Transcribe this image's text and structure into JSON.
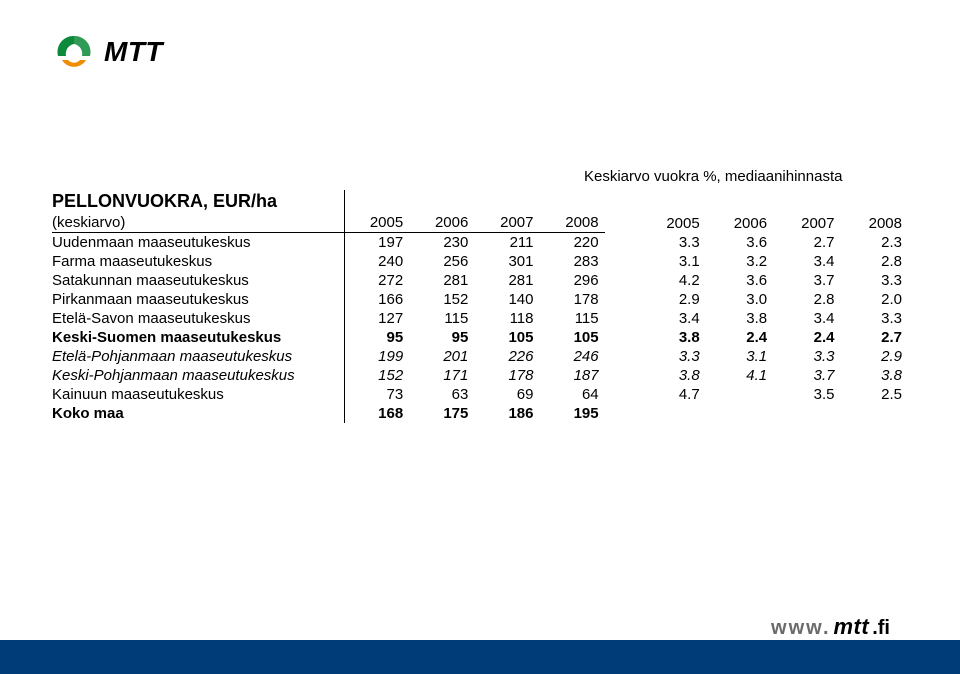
{
  "logo": {
    "text": "MTT",
    "colors": {
      "green": "#0a8a3a",
      "orange": "#f08c00",
      "text": "#000000"
    }
  },
  "table": {
    "super_header": "Keskiarvo vuokra %, mediaanihinnasta",
    "title": "PELLONVUOKRA, EUR/ha",
    "subtitle_label": "(keskiarvo)",
    "eur_years": [
      "2005",
      "2006",
      "2007",
      "2008"
    ],
    "pct_years": [
      "2005",
      "2006",
      "2007",
      "2008"
    ],
    "rows": [
      {
        "label": "Uudenmaan maaseutukeskus",
        "eur": [
          "197",
          "230",
          "211",
          "220"
        ],
        "pct": [
          "3.3",
          "3.6",
          "2.7",
          "2.3"
        ]
      },
      {
        "label": "Farma maaseutukeskus",
        "eur": [
          "240",
          "256",
          "301",
          "283"
        ],
        "pct": [
          "3.1",
          "3.2",
          "3.4",
          "2.8"
        ]
      },
      {
        "label": "Satakunnan maaseutukeskus",
        "eur": [
          "272",
          "281",
          "281",
          "296"
        ],
        "pct": [
          "4.2",
          "3.6",
          "3.7",
          "3.3"
        ]
      },
      {
        "label": "Pirkanmaan maaseutukeskus",
        "eur": [
          "166",
          "152",
          "140",
          "178"
        ],
        "pct": [
          "2.9",
          "3.0",
          "2.8",
          "2.0"
        ]
      },
      {
        "label": "Etelä-Savon maaseutukeskus",
        "eur": [
          "127",
          "115",
          "118",
          "115"
        ],
        "pct": [
          "3.4",
          "3.8",
          "3.4",
          "3.3"
        ]
      },
      {
        "label": "Keski-Suomen maaseutukeskus",
        "eur": [
          "95",
          "95",
          "105",
          "105"
        ],
        "pct": [
          "3.8",
          "2.4",
          "2.4",
          "2.7"
        ],
        "bold": true
      },
      {
        "label": "Etelä-Pohjanmaan maaseutukeskus",
        "eur": [
          "199",
          "201",
          "226",
          "246"
        ],
        "pct": [
          "3.3",
          "3.1",
          "3.3",
          "2.9"
        ],
        "italic": true
      },
      {
        "label": "Keski-Pohjanmaan maaseutukeskus",
        "eur": [
          "152",
          "171",
          "178",
          "187"
        ],
        "pct": [
          "3.8",
          "4.1",
          "3.7",
          "3.8"
        ],
        "italic": true
      },
      {
        "label": "Kainuun maaseutukeskus",
        "eur": [
          "73",
          "63",
          "69",
          "64"
        ],
        "pct": [
          "4.7",
          "",
          "3.5",
          "2.5"
        ]
      },
      {
        "label": "Koko maa",
        "eur": [
          "168",
          "175",
          "186",
          "195"
        ],
        "pct": [
          "",
          "",
          "",
          ""
        ],
        "bold": true
      }
    ]
  },
  "footer": {
    "url_parts": {
      "www": "www.",
      "mtt": "mtt",
      "fi": ".fi"
    },
    "bar_color": "#003d78",
    "url_color": "#333333"
  }
}
